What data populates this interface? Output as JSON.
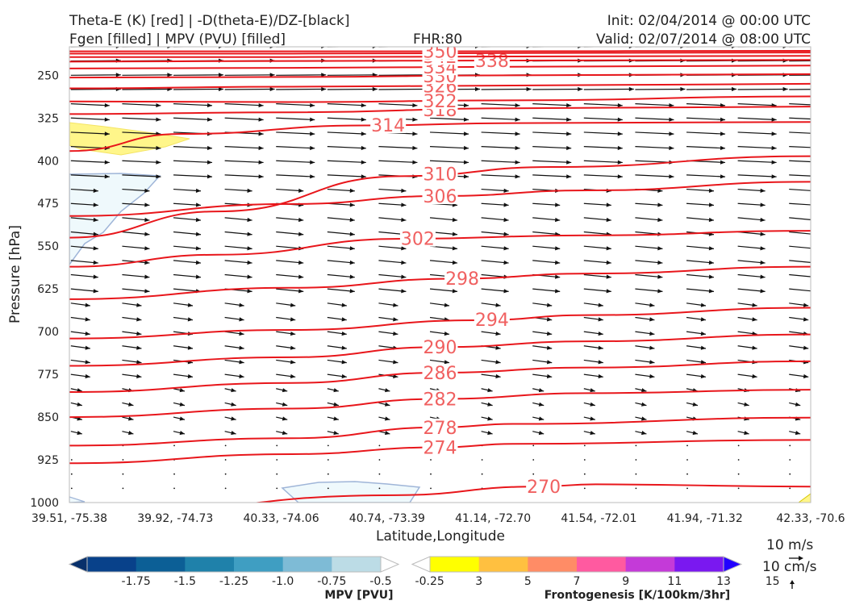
{
  "header": {
    "title_left_line1": "Theta-E (K) [red] | -D(theta-E)/DZ-[black]",
    "title_left_line2": "Fgen [filled] | MPV (PVU) [filled]",
    "title_center": "FHR:80",
    "title_right_line1": "Init: 02/04/2014 @ 00:00 UTC",
    "title_right_line2": "Valid: 02/07/2014 @ 08:00 UTC"
  },
  "chart_data": {
    "type": "cross-section",
    "xlabel": "Latitude,Longitude",
    "ylabel": "Pressure [hPa]",
    "x_ticks": [
      "39.51, -75.38",
      "39.92, -74.73",
      "40.33, -74.06",
      "40.74, -73.39",
      "41.14, -72.70",
      "41.54, -72.01",
      "41.94, -71.32",
      "42.33, -70.6"
    ],
    "y_ticks": [
      250,
      325,
      400,
      475,
      550,
      625,
      700,
      775,
      850,
      925,
      1000
    ],
    "ylim": [
      1000,
      200
    ],
    "grid": false,
    "theta_e_contours": [
      {
        "label": "270",
        "points": [
          [
            0,
            1025
          ],
          [
            0.44,
            987
          ],
          [
            0.63,
            972
          ],
          [
            0.71,
            968
          ],
          [
            1.0,
            972
          ]
        ]
      },
      {
        "label": "274",
        "points": [
          [
            0,
            931
          ],
          [
            0.3,
            915
          ],
          [
            0.5,
            903
          ],
          [
            0.6,
            897
          ],
          [
            1.0,
            890
          ]
        ]
      },
      {
        "label": "278",
        "points": [
          [
            0,
            900
          ],
          [
            0.3,
            887
          ],
          [
            0.5,
            868
          ],
          [
            0.6,
            862
          ],
          [
            1.0,
            851
          ]
        ]
      },
      {
        "label": "282",
        "points": [
          [
            0,
            850
          ],
          [
            0.3,
            835
          ],
          [
            0.5,
            818
          ],
          [
            0.7,
            808
          ],
          [
            1.0,
            802
          ]
        ]
      },
      {
        "label": "286",
        "points": [
          [
            0,
            806
          ],
          [
            0.3,
            790
          ],
          [
            0.5,
            772
          ],
          [
            0.7,
            763
          ],
          [
            1.0,
            752
          ]
        ]
      },
      {
        "label": "290",
        "points": [
          [
            0,
            760
          ],
          [
            0.3,
            745
          ],
          [
            0.5,
            727
          ],
          [
            0.7,
            717
          ],
          [
            1.0,
            705
          ]
        ]
      },
      {
        "label": "294",
        "points": [
          [
            0,
            712
          ],
          [
            0.3,
            697
          ],
          [
            0.55,
            680
          ],
          [
            0.7,
            671
          ],
          [
            1.0,
            658
          ]
        ]
      },
      {
        "label": "298",
        "points": [
          [
            0,
            643
          ],
          [
            0.3,
            623
          ],
          [
            0.52,
            607
          ],
          [
            0.7,
            598
          ],
          [
            1.0,
            586
          ]
        ]
      },
      {
        "label": "302",
        "points": [
          [
            0,
            586
          ],
          [
            0.2,
            565
          ],
          [
            0.45,
            537
          ],
          [
            0.7,
            531
          ],
          [
            1.0,
            523
          ]
        ]
      },
      {
        "label": "306",
        "points": [
          [
            0,
            497
          ],
          [
            0.3,
            476
          ],
          [
            0.5,
            462
          ],
          [
            0.7,
            452
          ],
          [
            1.0,
            437
          ]
        ]
      },
      {
        "label": "310",
        "points": [
          [
            0,
            535
          ],
          [
            0.2,
            489
          ],
          [
            0.45,
            427
          ],
          [
            0.65,
            411
          ],
          [
            1.0,
            392
          ]
        ]
      },
      {
        "label": "314",
        "points": [
          [
            0,
            383
          ],
          [
            0.15,
            353
          ],
          [
            0.4,
            338
          ],
          [
            0.6,
            334
          ],
          [
            1.0,
            332
          ]
        ]
      },
      {
        "label": "318",
        "points": [
          [
            0,
            318
          ],
          [
            0.3,
            315
          ],
          [
            0.6,
            308
          ],
          [
            1.0,
            305
          ]
        ]
      },
      {
        "label": "322",
        "points": [
          [
            0,
            296
          ],
          [
            0.3,
            297
          ],
          [
            0.6,
            294
          ],
          [
            1.0,
            287
          ]
        ]
      },
      {
        "label": "326",
        "points": [
          [
            0,
            273
          ],
          [
            0.3,
            270
          ],
          [
            0.6,
            268
          ],
          [
            1.0,
            265
          ]
        ]
      },
      {
        "label": "330",
        "points": [
          [
            0,
            254
          ],
          [
            0.3,
            253
          ],
          [
            0.6,
            250
          ],
          [
            1.0,
            248
          ]
        ]
      },
      {
        "label": "334",
        "points": [
          [
            0,
            238
          ],
          [
            0.3,
            237
          ],
          [
            0.6,
            235
          ],
          [
            1.0,
            233
          ]
        ]
      },
      {
        "label": "338",
        "points": [
          [
            0,
            226
          ],
          [
            0.3,
            225
          ],
          [
            0.6,
            224
          ],
          [
            1.0,
            223
          ]
        ]
      },
      {
        "label": "342",
        "points": [
          [
            0,
            218
          ],
          [
            0.3,
            218
          ],
          [
            0.6,
            217
          ],
          [
            1.0,
            216
          ]
        ]
      },
      {
        "label": "346",
        "points": [
          [
            0,
            212
          ],
          [
            0.3,
            212
          ],
          [
            0.6,
            211
          ],
          [
            1.0,
            210
          ]
        ]
      },
      {
        "label": "350",
        "points": [
          [
            0,
            208
          ],
          [
            0.5,
            208
          ],
          [
            1.0,
            207
          ]
        ]
      }
    ],
    "fgen_fill_levels": [
      3,
      5,
      7,
      9,
      11,
      13,
      15
    ],
    "mpv_fill_levels": [
      -1.75,
      -1.5,
      -1.25,
      -1.0,
      -0.75,
      -0.5,
      -0.25
    ],
    "reference_vectors": [
      "10 m/s",
      "10 cm/s"
    ]
  },
  "colorbars": {
    "mpv": {
      "label": "MPV [PVU]",
      "ticks": [
        "-1.75",
        "-1.5",
        "-1.25",
        "-1.0",
        "-0.75",
        "-0.5",
        "-0.25"
      ],
      "colors": [
        "#08306b",
        "#08418a",
        "#0c5f96",
        "#1f81aa",
        "#3f9ec2",
        "#7ebbd6",
        "#bcdce6",
        "#ffffff"
      ]
    },
    "fgen": {
      "label": "Frontogenesis [K/100km/3hr]",
      "ticks": [
        "3",
        "5",
        "7",
        "9",
        "11",
        "13",
        "15"
      ],
      "colors": [
        "#ffffff",
        "#ffff00",
        "#ffc040",
        "#ff8c66",
        "#ff5aa0",
        "#c43ad8",
        "#7a18f0",
        "#2200ff"
      ]
    }
  },
  "colors": {
    "theta_e": "#e8161b",
    "theta_e_label": "#f06060",
    "wind": "#111111",
    "fgen_low": "#fff68a",
    "mpv_low": "#eff9fc",
    "mpv_edge": "#9fb5d8"
  }
}
